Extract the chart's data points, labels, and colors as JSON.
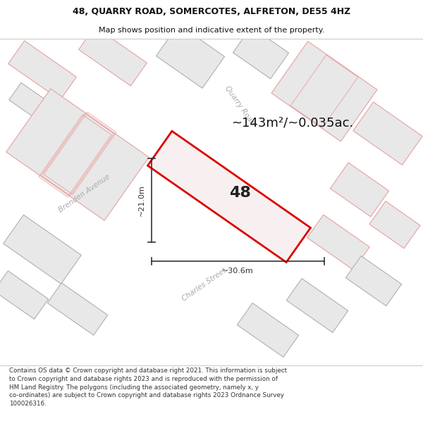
{
  "title_line1": "48, QUARRY ROAD, SOMERCOTES, ALFRETON, DE55 4HZ",
  "title_line2": "Map shows position and indicative extent of the property.",
  "area_text": "~143m²/~0.035ac.",
  "property_number": "48",
  "dim_width": "~30.6m",
  "dim_height": "~21.0m",
  "footer_text": "Contains OS data © Crown copyright and database right 2021. This information is subject to Crown copyright and database rights 2023 and is reproduced with the permission of HM Land Registry. The polygons (including the associated geometry, namely x, y co-ordinates) are subject to Crown copyright and database rights 2023 Ordnance Survey 100026316.",
  "map_bg": "#ffffff",
  "building_fill": "#e8e8e8",
  "building_edge_red": "#e8a0a0",
  "building_edge_gray": "#b0b0b0",
  "highlight_fill": "#f8f0f0",
  "highlight_edge": "#dd0000",
  "road_label_color": "#aaaaaa",
  "title_color": "#111111",
  "footer_color": "#333333",
  "white_bg": "#ffffff",
  "dim_color": "#333333"
}
